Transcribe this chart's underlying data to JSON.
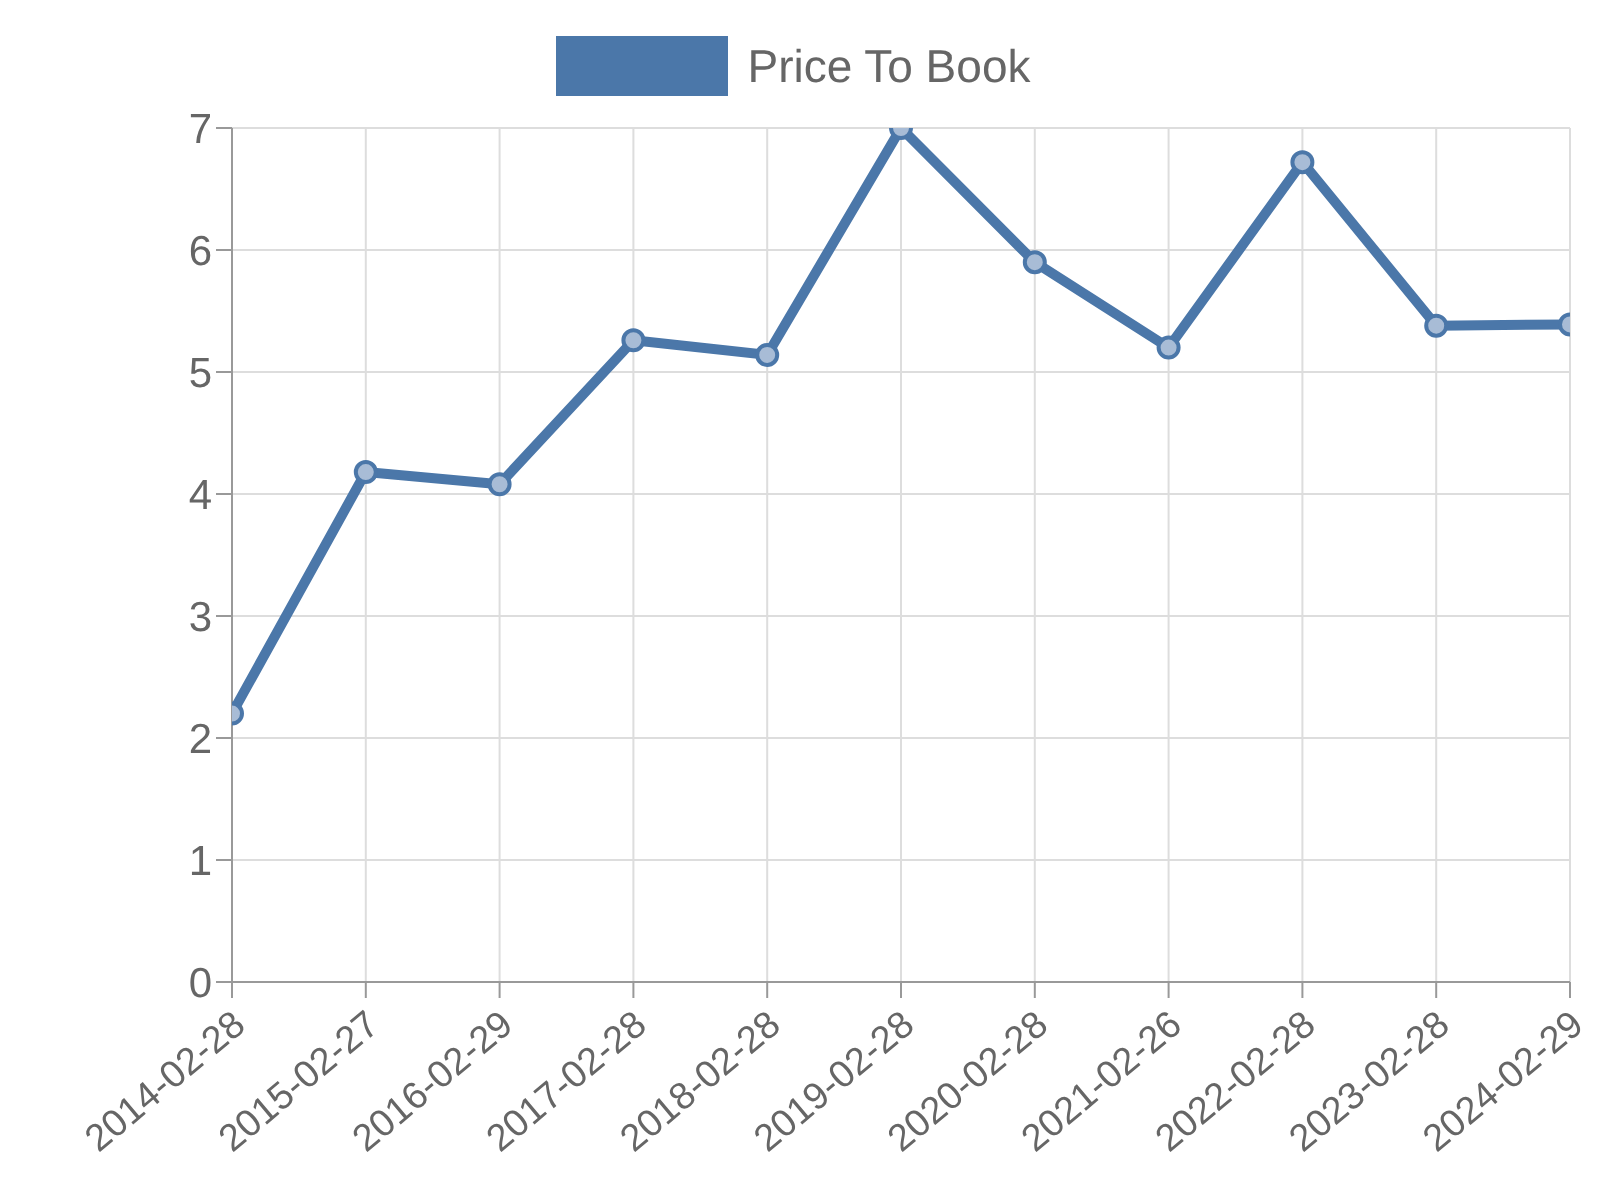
{
  "chart_data": {
    "type": "line",
    "categories": [
      "2014-02-28",
      "2015-02-27",
      "2016-02-29",
      "2017-02-28",
      "2018-02-28",
      "2019-02-28",
      "2020-02-28",
      "2021-02-26",
      "2022-02-28",
      "2023-02-28",
      "2024-02-29"
    ],
    "series": [
      {
        "name": "Price To Book",
        "color": "#4b77a9",
        "values": [
          2.2,
          4.18,
          4.08,
          5.26,
          5.14,
          7.0,
          5.9,
          5.2,
          6.72,
          5.38,
          5.39
        ]
      }
    ],
    "ylim": [
      0,
      7
    ],
    "yticks": [
      0,
      1,
      2,
      3,
      4,
      5,
      6,
      7
    ],
    "grid": true,
    "legend": "top",
    "marker": "circle",
    "line_style": "solid"
  }
}
